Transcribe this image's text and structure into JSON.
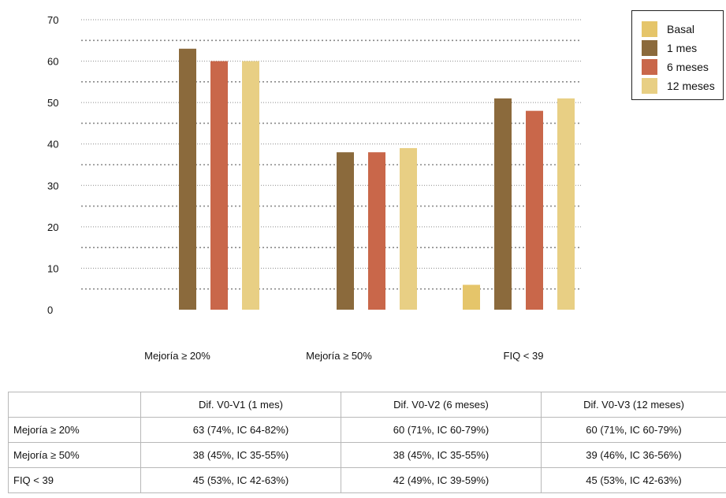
{
  "colors": {
    "basal": "#E5C56A",
    "mes1": "#8B6A3C",
    "meses6": "#C9674A",
    "meses12": "#E8CF84",
    "grid": "#8a8a8a"
  },
  "chart_data": {
    "type": "bar",
    "title": "",
    "xlabel": "",
    "ylabel": "",
    "ylim": [
      0,
      70
    ],
    "yticks": [
      "70",
      "60",
      "50",
      "40",
      "30",
      "20",
      "10",
      "0"
    ],
    "grid": true,
    "legend_position": "top-right",
    "categories": [
      "Mejoría ≥ 20%",
      "Mejoría ≥ 50%",
      "FIQ < 39"
    ],
    "series": [
      {
        "name": "Basal",
        "values": [
          0,
          0,
          6
        ]
      },
      {
        "name": "1 mes",
        "values": [
          63,
          38,
          51
        ]
      },
      {
        "name": "6 meses",
        "values": [
          60,
          38,
          48
        ]
      },
      {
        "name": "12 meses",
        "values": [
          60,
          39,
          51
        ]
      }
    ]
  },
  "table": {
    "headers": [
      "",
      "Dif. V0-V1 (1 mes)",
      "Dif. V0-V2 (6 meses)",
      "Dif. V0-V3 (12 meses)"
    ],
    "rows": [
      [
        "Mejoría ≥ 20%",
        "63 (74%, IC 64-82%)",
        "60 (71%, IC 60-79%)",
        "60 (71%, IC 60-79%)"
      ],
      [
        "Mejoría ≥ 50%",
        "38 (45%, IC 35-55%)",
        "38 (45%, IC 35-55%)",
        "39 (46%, IC 36-56%)"
      ],
      [
        "FIQ < 39",
        "45 (53%, IC 42-63%)",
        "42 (49%, IC 39-59%)",
        "45 (53%, IC 42-63%)"
      ]
    ]
  }
}
